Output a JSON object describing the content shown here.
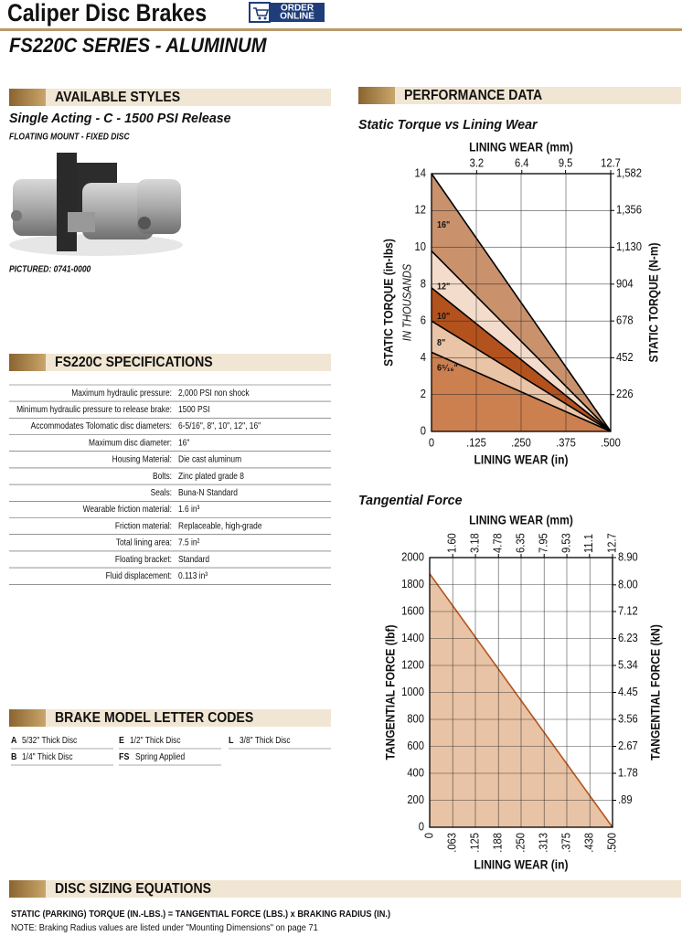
{
  "header": {
    "title": "Caliper Disc Brakes",
    "badge_top": "ORDER",
    "badge_bottom": "ONLINE",
    "subtitle": "FS220C SERIES - ALUMINUM"
  },
  "styles": {
    "heading": "AVAILABLE STYLES",
    "name": "Single Acting -  C - 1500 PSI Release",
    "mount": "FLOATING MOUNT - FIXED DISC",
    "pictured": "PICTURED: 0741-0000"
  },
  "specs": {
    "heading": "FS220C SPECIFICATIONS",
    "rows": [
      [
        "Maximum hydraulic pressure:",
        "2,000 PSI non shock"
      ],
      [
        "Minimum hydraulic pressure to release brake:",
        "1500 PSI"
      ],
      [
        "Accommodates Tolomatic disc diameters:",
        "6-5/16\", 8\", 10\", 12\", 16\""
      ],
      [
        "Maximum disc diameter:",
        "16\""
      ],
      [
        "Housing Material:",
        "Die cast aluminum"
      ],
      [
        "Bolts:",
        "Zinc plated grade 8"
      ],
      [
        "Seals:",
        "Buna-N Standard"
      ],
      [
        "Wearable friction material:",
        "1.6 in³"
      ],
      [
        "Friction material:",
        "Replaceable, high-grade"
      ],
      [
        "Total lining area:",
        "7.5 in²"
      ],
      [
        "Floating bracket:",
        "Standard"
      ],
      [
        "Fluid displacement:",
        "0.113 in³"
      ]
    ]
  },
  "codes": {
    "heading": "BRAKE MODEL LETTER CODES",
    "rows": [
      [
        {
          "code": "A",
          "text": "5/32\" Thick Disc"
        },
        {
          "code": "E",
          "text": "1/2\" Thick Disc"
        },
        {
          "code": "L",
          "text": "3/8\" Thick Disc"
        }
      ],
      [
        {
          "code": "B",
          "text": "1/4\" Thick Disc"
        },
        {
          "code": "FS",
          "text": "Spring Applied"
        }
      ]
    ]
  },
  "performance": {
    "heading": "PERFORMANCE DATA"
  },
  "equations": {
    "heading": "DISC SIZING EQUATIONS",
    "lines": [
      "STATIC (PARKING) TORQUE (IN.-LBS.) = TANGENTIAL FORCE (LBS.) x BRAKING RADIUS (IN.)",
      "NOTE: Braking Radius values are listed under \"Mounting Dimensions\" on page 71"
    ]
  },
  "chart_data": [
    {
      "type": "area",
      "title": "Static Torque vs Lining Wear",
      "xlabel": "LINING WEAR (in)",
      "x2label": "LINING WEAR (mm)",
      "ylabel": "STATIC TORQUE (in-lbs)",
      "ylabel_note": "IN THOUSANDS",
      "y2label": "STATIC TORQUE (N-m)",
      "x": [
        0,
        0.5
      ],
      "series": [
        {
          "name": "16\"",
          "color": "#c9926d",
          "values": [
            14,
            0
          ]
        },
        {
          "name": "12\"",
          "color": "#f3dccb",
          "values": [
            9.8,
            0
          ]
        },
        {
          "name": "10\"",
          "color": "#b4521e",
          "values": [
            7.8,
            0
          ]
        },
        {
          "name": "8\"",
          "color": "#e9c4a6",
          "values": [
            6,
            0
          ]
        },
        {
          "name": "6⁵⁄₁₆\"",
          "color": "#cc7f4f",
          "values": [
            4.3,
            0
          ]
        }
      ],
      "line_color": "#000000",
      "xlim": [
        0,
        0.5
      ],
      "xticks": [
        0,
        {
          "value": 0.125,
          "label": ".125"
        },
        {
          "value": 0.25,
          "label": ".250"
        },
        {
          "value": 0.375,
          "label": ".375"
        },
        {
          "value": 0.5,
          "label": ".500"
        }
      ],
      "x2lim": [
        0,
        12.7
      ],
      "x2ticks": [
        3.2,
        6.4,
        9.5,
        12.7
      ],
      "ylim": [
        0,
        14
      ],
      "yticks": [
        0,
        2,
        4,
        6,
        8,
        10,
        12,
        14
      ],
      "y2lim": [
        0,
        1582
      ],
      "y2ticks": [
        226,
        452,
        678,
        904,
        {
          "value": 1130,
          "label": "1,130"
        },
        {
          "value": 1356,
          "label": "1,356"
        },
        {
          "value": 1582,
          "label": "1,582"
        }
      ],
      "grid": true
    },
    {
      "type": "area",
      "title": "Tangential Force",
      "xlabel": "LINING WEAR (in)",
      "x2label": "LINING WEAR (mm)",
      "ylabel": "TANGENTIAL FORCE (lbf)",
      "y2label": "TANGENTIAL FORCE (kN)",
      "x": [
        0,
        0.5
      ],
      "values": [
        1880,
        0
      ],
      "color": "#e8c3a5",
      "line_color": "#b5541e",
      "xlim": [
        0,
        0.5
      ],
      "xticks": [
        0,
        {
          "value": 0.063,
          "label": ".063"
        },
        {
          "value": 0.125,
          "label": ".125"
        },
        {
          "value": 0.188,
          "label": ".188"
        },
        {
          "value": 0.25,
          "label": ".250"
        },
        {
          "value": 0.313,
          "label": ".313"
        },
        {
          "value": 0.375,
          "label": ".375"
        },
        {
          "value": 0.438,
          "label": ".438"
        },
        {
          "value": 0.5,
          "label": ".500"
        }
      ],
      "x2lim": [
        0,
        12.7
      ],
      "x2ticks": [
        {
          "value": 1.6,
          "label": "1.60"
        },
        3.18,
        4.78,
        6.35,
        7.95,
        9.53,
        11.1,
        12.7
      ],
      "ylim": [
        0,
        2000
      ],
      "yticks": [
        0,
        200,
        400,
        600,
        800,
        1000,
        1200,
        1400,
        1600,
        1800,
        2000
      ],
      "y2lim": [
        0,
        8.9
      ],
      "y2ticks": [
        {
          "value": 0.89,
          "label": ".89"
        },
        1.78,
        2.67,
        3.56,
        4.45,
        5.34,
        6.23,
        7.12,
        {
          "value": 8,
          "label": "8.00"
        },
        {
          "value": 8.9,
          "label": "8.90"
        }
      ],
      "grid": true
    }
  ]
}
